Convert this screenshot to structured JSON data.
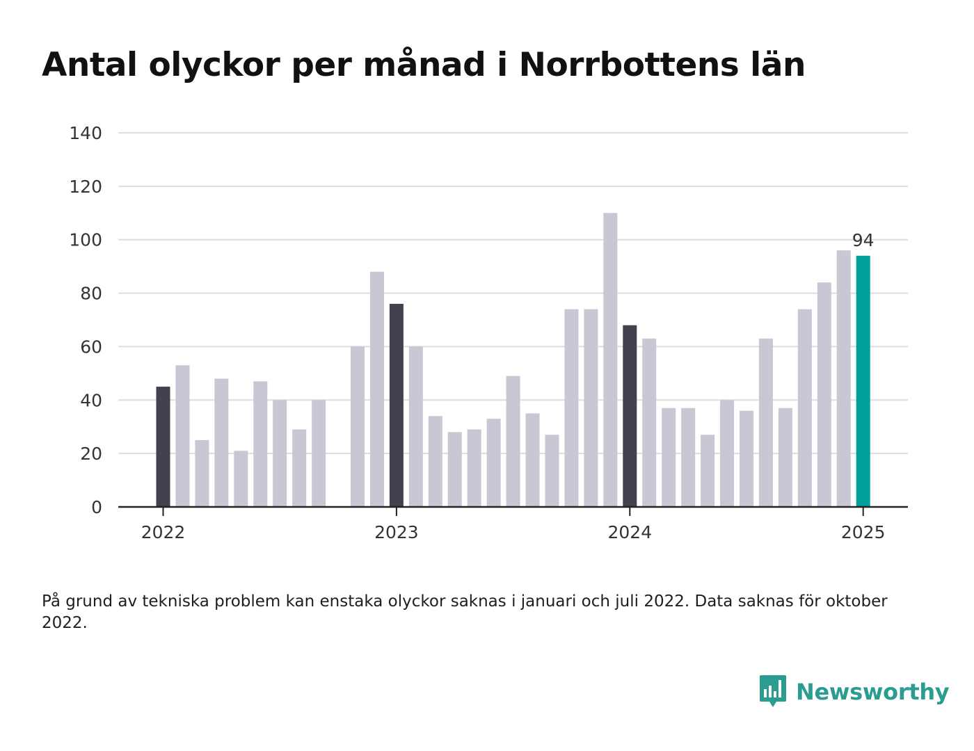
{
  "title": "Antal olyckor per månad i Norrbottens län",
  "footnote": "På grund av tekniska problem kan enstaka olyckor saknas i januari och juli 2022. Data saknas för oktober 2022.",
  "brand": {
    "name": "Newsworthy",
    "icon": "bar-chart-speech-bubble-icon"
  },
  "colors": {
    "default_bar": "#c8c7d4",
    "january_bar": "#42414e",
    "latest_bar": "#00a19a",
    "grid": "#dddddd",
    "axis": "#222222"
  },
  "chart_data": {
    "type": "bar",
    "title": "Antal olyckor per månad i Norrbottens län",
    "xlabel": "",
    "ylabel": "",
    "ylim": [
      0,
      140
    ],
    "yticks": [
      0,
      20,
      40,
      60,
      80,
      100,
      120,
      140
    ],
    "xticks": [
      "2022",
      "2023",
      "2024",
      "2025"
    ],
    "grid": true,
    "categories": [
      "2022-01",
      "2022-02",
      "2022-03",
      "2022-04",
      "2022-05",
      "2022-06",
      "2022-07",
      "2022-08",
      "2022-09",
      "2022-10",
      "2022-11",
      "2022-12",
      "2023-01",
      "2023-02",
      "2023-03",
      "2023-04",
      "2023-05",
      "2023-06",
      "2023-07",
      "2023-08",
      "2023-09",
      "2023-10",
      "2023-11",
      "2023-12",
      "2024-01",
      "2024-02",
      "2024-03",
      "2024-04",
      "2024-05",
      "2024-06",
      "2024-07",
      "2024-08",
      "2024-09",
      "2024-10",
      "2024-11",
      "2024-12",
      "2025-01"
    ],
    "values": [
      45,
      53,
      25,
      48,
      21,
      47,
      40,
      29,
      40,
      null,
      60,
      88,
      76,
      60,
      34,
      28,
      29,
      33,
      49,
      35,
      27,
      74,
      74,
      110,
      68,
      63,
      37,
      37,
      27,
      40,
      36,
      63,
      37,
      74,
      84,
      96,
      94
    ],
    "highlight": {
      "latest_label": "94"
    }
  }
}
